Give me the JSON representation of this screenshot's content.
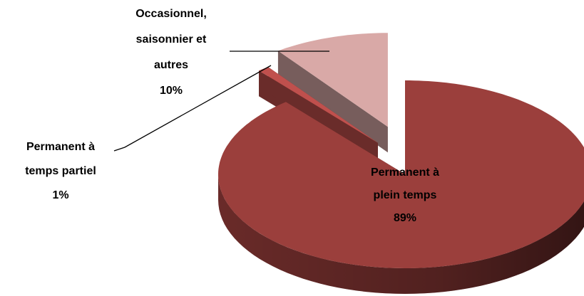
{
  "chart_data": {
    "type": "pie3d",
    "categories": [
      "Permanent à plein temps",
      "Permanent à temps partiel",
      "Occasionnel, saisonnier et autres"
    ],
    "values": [
      89,
      1,
      10
    ],
    "value_labels": [
      "89%",
      "1%",
      "10%"
    ],
    "colors": [
      "#9b3f3c",
      "#c0504d",
      "#d9a9a7"
    ]
  }
}
